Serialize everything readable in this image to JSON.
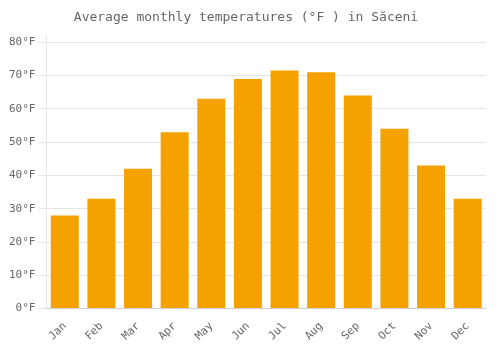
{
  "chart_data": {
    "type": "bar",
    "title": "Average monthly temperatures (°F ) in Săceni",
    "categories": [
      "Jan",
      "Feb",
      "Mar",
      "Apr",
      "May",
      "Jun",
      "Jul",
      "Aug",
      "Sep",
      "Oct",
      "Nov",
      "Dec"
    ],
    "values": [
      28.0,
      33.0,
      42.0,
      53.0,
      63.0,
      69.0,
      71.5,
      71.0,
      64.0,
      54.0,
      43.0,
      33.0
    ],
    "color": "#F5A100",
    "ylim": [
      0,
      82
    ],
    "yticks": [
      {
        "value": 0,
        "label": "0°F"
      },
      {
        "value": 10,
        "label": "10°F"
      },
      {
        "value": 20,
        "label": "20°F"
      },
      {
        "value": 30,
        "label": "30°F"
      },
      {
        "value": 40,
        "label": "40°F"
      },
      {
        "value": 50,
        "label": "50°F"
      },
      {
        "value": 60,
        "label": "60°F"
      },
      {
        "value": 70,
        "label": "70°F"
      },
      {
        "value": 80,
        "label": "80°F"
      }
    ],
    "grid": true
  }
}
